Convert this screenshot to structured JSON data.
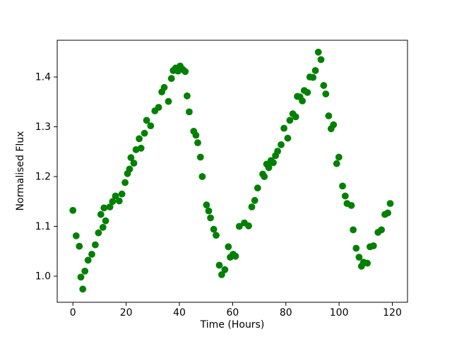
{
  "figure": {
    "background": "#ffffff",
    "border_color": "#000000"
  },
  "chart_data": {
    "type": "scatter",
    "title": "",
    "xlabel": "Time (Hours)",
    "ylabel": "Normalised Flux",
    "grid": false,
    "legend": null,
    "marker": {
      "shape": "circle",
      "color": "#008000",
      "radius_px": 4.9
    },
    "xlim": [
      -5.9,
      125.7
    ],
    "ylim": [
      0.9475,
      1.4738
    ],
    "xticks": [
      0,
      20,
      40,
      60,
      80,
      100,
      120
    ],
    "xtick_labels": [
      "0",
      "20",
      "40",
      "60",
      "80",
      "100",
      "120"
    ],
    "yticks": [
      1.0,
      1.1,
      1.2,
      1.3,
      1.4
    ],
    "ytick_labels": [
      "1.0",
      "1.1",
      "1.2",
      "1.3",
      "1.4"
    ],
    "x": [
      0.0,
      1.2,
      2.4,
      3.0,
      3.7,
      4.5,
      5.7,
      7.1,
      8.4,
      9.6,
      10.5,
      11.3,
      11.7,
      12.3,
      13.9,
      14.9,
      16.0,
      17.4,
      18.4,
      19.6,
      20.5,
      21.3,
      21.8,
      22.9,
      23.7,
      24.9,
      25.6,
      26.9,
      27.7,
      29.2,
      30.8,
      32.2,
      33.4,
      34.3,
      35.9,
      37.0,
      37.7,
      38.6,
      39.5,
      40.3,
      41.3,
      42.2,
      42.9,
      43.7,
      45.4,
      46.2,
      46.9,
      47.9,
      48.6,
      50.2,
      51.0,
      51.7,
      52.9,
      53.8,
      55.0,
      55.9,
      57.1,
      58.4,
      59.1,
      60.2,
      61.1,
      62.5,
      64.4,
      66.0,
      67.2,
      68.3,
      69.4,
      71.3,
      71.9,
      72.8,
      73.6,
      74.4,
      75.3,
      76.1,
      76.9,
      78.2,
      79.3,
      80.7,
      81.5,
      82.6,
      83.7,
      84.3,
      85.3,
      86.2,
      86.9,
      88.1,
      89.0,
      90.2,
      91.1,
      92.2,
      93.2,
      94.2,
      95.0,
      96.1,
      97.0,
      97.9,
      99.1,
      99.9,
      101.3,
      102.3,
      103.0,
      104.6,
      105.3,
      106.4,
      107.5,
      108.4,
      109.2,
      110.6,
      111.6,
      112.9,
      114.6,
      115.9,
      117.2,
      118.3,
      119.2
    ],
    "y": [
      1.132,
      1.081,
      1.06,
      0.998,
      0.974,
      1.01,
      1.032,
      1.044,
      1.063,
      1.087,
      1.124,
      1.098,
      1.137,
      1.111,
      1.139,
      1.15,
      1.161,
      1.151,
      1.165,
      1.188,
      1.206,
      1.215,
      1.238,
      1.227,
      1.254,
      1.276,
      1.257,
      1.287,
      1.313,
      1.302,
      1.332,
      1.339,
      1.37,
      1.379,
      1.351,
      1.397,
      1.413,
      1.418,
      1.412,
      1.422,
      1.415,
      1.411,
      1.362,
      1.33,
      1.291,
      1.283,
      1.268,
      1.239,
      1.2,
      1.143,
      1.131,
      1.117,
      1.094,
      1.082,
      1.022,
      1.003,
      1.013,
      1.059,
      1.038,
      1.044,
      1.04,
      1.1,
      1.107,
      1.101,
      1.139,
      1.152,
      1.177,
      1.205,
      1.2,
      1.225,
      1.218,
      1.232,
      1.228,
      1.242,
      1.251,
      1.264,
      1.297,
      1.277,
      1.313,
      1.326,
      1.32,
      1.361,
      1.36,
      1.352,
      1.373,
      1.369,
      1.4,
      1.399,
      1.413,
      1.45,
      1.435,
      1.383,
      1.366,
      1.322,
      1.296,
      1.304,
      1.226,
      1.239,
      1.181,
      1.161,
      1.146,
      1.142,
      1.093,
      1.056,
      1.038,
      1.02,
      1.028,
      1.026,
      1.059,
      1.061,
      1.088,
      1.093,
      1.124,
      1.127,
      1.146
    ]
  }
}
